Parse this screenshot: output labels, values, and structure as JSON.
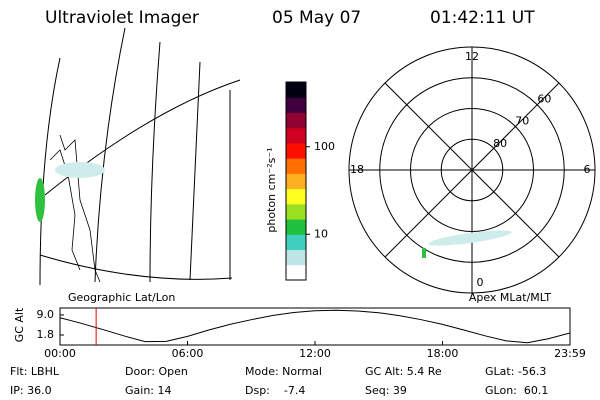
{
  "header": {
    "title": "Ultraviolet Imager",
    "date": "05 May 07",
    "time": "01:42:11 UT"
  },
  "colorbar": {
    "label": "photon cm⁻²s⁻¹",
    "log": true,
    "lim": [
      3,
      550
    ],
    "ticks": [
      10,
      100
    ],
    "colors": [
      "#ffffff",
      "#bfe6e6",
      "#40d0c0",
      "#20c040",
      "#9ae020",
      "#ffff20",
      "#ffb020",
      "#ff7000",
      "#ff1000",
      "#d00020",
      "#900030",
      "#400040",
      "#000010"
    ]
  },
  "geo_map": {
    "label": "Geographic Lat/Lon"
  },
  "polar": {
    "label": "Apex MLat/MLT",
    "rlim": [
      90,
      50
    ],
    "rticks": [
      60,
      70,
      80
    ],
    "mlt_ticks": [
      12,
      18,
      6,
      0
    ]
  },
  "chart_data": {
    "type": "line",
    "ylabel": "GC Alt",
    "xlim": [
      0,
      24
    ],
    "ylim": [
      -1.8,
      11.5
    ],
    "xticks": [
      {
        "value": 0,
        "label": "00:00"
      },
      {
        "value": 6,
        "label": "06:00"
      },
      {
        "value": 12,
        "label": "12:00"
      },
      {
        "value": 18,
        "label": "18:00"
      },
      {
        "value": 24,
        "label": "23:59"
      }
    ],
    "yticks": [
      1.8,
      {
        "value": 9,
        "label": "9.0"
      }
    ],
    "x": [
      0,
      1,
      2,
      3,
      4,
      5,
      6,
      7,
      8,
      9,
      10,
      11,
      12,
      13,
      14,
      15,
      16,
      17,
      18,
      19,
      20,
      21,
      22,
      23,
      24
    ],
    "values": [
      8.0,
      6.0,
      3.8,
      1.5,
      -0.6,
      -0.5,
      1.3,
      3.6,
      5.6,
      7.3,
      8.8,
      9.9,
      10.5,
      10.7,
      10.4,
      9.8,
      8.7,
      7.3,
      5.6,
      3.6,
      1.5,
      -0.3,
      -1.0,
      0.5,
      2.5
    ],
    "color": "#000000",
    "marker_x": 1.7,
    "marker_color": "#e00000"
  },
  "status": [
    [
      "Flt: LBHL",
      "Door: Open",
      "Mode: Normal",
      "GC Alt: 5.4 Re",
      "GLat: -56.3"
    ],
    [
      "IP: 36.0",
      "Gain: 14",
      "Dsp:    -7.4",
      "Seq: 39",
      "GLon:  60.1"
    ]
  ]
}
